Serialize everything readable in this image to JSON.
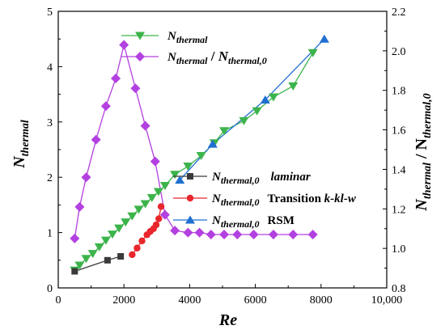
{
  "chart_data": {
    "type": "line",
    "xlabel": "Re",
    "ylabel_left": "N_thermal",
    "ylabel_right": "N_thermal / N_thermal,0",
    "xlim": [
      0,
      10000
    ],
    "ylim_left": [
      0,
      5
    ],
    "ylim_right": [
      0.8,
      2.2
    ],
    "x_ticks": [
      0,
      2000,
      4000,
      6000,
      8000,
      10000
    ],
    "x_tick_labels": [
      "0",
      "2000",
      "4000",
      "6000",
      "8000",
      "10,000"
    ],
    "y_left_ticks": [
      0,
      1,
      2,
      3,
      4,
      5
    ],
    "y_left_tick_labels": [
      "0",
      "1",
      "2",
      "3",
      "4",
      "5"
    ],
    "y_right_ticks": [
      0.8,
      1.0,
      1.2,
      1.4,
      1.6,
      1.8,
      2.0,
      2.2
    ],
    "y_right_tick_labels": [
      "0.8",
      "1.0",
      "1.2",
      "1.4",
      "1.6",
      "1.8",
      "2.0",
      "2.2"
    ],
    "grid": false,
    "legends": [
      {
        "placement": "top-left",
        "entries": [
          "N_thermal",
          "N_thermal / N_thermal,0"
        ]
      },
      {
        "placement": "center-right",
        "entries": [
          "N_thermal,0 laminar",
          "N_thermal,0 Transition k-kl-w",
          "N_thermal,0 RSM"
        ]
      }
    ],
    "series": [
      {
        "key": "nthermal",
        "name": "N_thermal",
        "axis": "left",
        "color": "#3cb44b",
        "marker": "triangle-down",
        "x": [
          500,
          650,
          850,
          1050,
          1250,
          1450,
          1650,
          1850,
          2050,
          2250,
          2450,
          2650,
          2850,
          3050,
          3250,
          3550,
          3950,
          4350,
          4750,
          5050,
          5650,
          6050,
          6550,
          7150,
          7750
        ],
        "y": [
          0.32,
          0.41,
          0.53,
          0.62,
          0.74,
          0.86,
          0.97,
          1.08,
          1.19,
          1.3,
          1.42,
          1.52,
          1.63,
          1.74,
          1.85,
          2.05,
          2.2,
          2.39,
          2.62,
          2.84,
          3.02,
          3.2,
          3.45,
          3.65,
          4.25
        ]
      },
      {
        "key": "ratio",
        "name": "N_thermal / N_thermal,0",
        "axis": "right",
        "color": "#b340e0",
        "marker": "diamond",
        "x": [
          500,
          650,
          850,
          1150,
          1450,
          1750,
          2000,
          2350,
          2650,
          2950,
          3250,
          3550,
          3950,
          4300,
          4650,
          5050,
          5450,
          5950,
          6550,
          7150,
          7750
        ],
        "y": [
          1.05,
          1.21,
          1.36,
          1.55,
          1.72,
          1.86,
          2.03,
          1.81,
          1.62,
          1.44,
          1.17,
          1.09,
          1.08,
          1.08,
          1.07,
          1.07,
          1.07,
          1.07,
          1.07,
          1.07,
          1.07
        ]
      },
      {
        "key": "laminar",
        "name": "N_thermal,0 laminar",
        "axis": "left",
        "color": "#3a3a3a",
        "marker": "square",
        "x": [
          500,
          1500,
          1900
        ],
        "y": [
          0.3,
          0.5,
          0.57
        ]
      },
      {
        "key": "transition",
        "name": "N_thermal,0 Transition k-kl-w",
        "axis": "left",
        "color": "#e8262b",
        "marker": "circle",
        "x": [
          2250,
          2400,
          2550,
          2700,
          2800,
          2900,
          2980,
          3060,
          3130
        ],
        "y": [
          0.6,
          0.72,
          0.85,
          0.96,
          1.02,
          1.07,
          1.14,
          1.25,
          1.47
        ]
      },
      {
        "key": "rsm",
        "name": "N_thermal,0 RSM",
        "axis": "left",
        "color": "#1f6fd1",
        "marker": "triangle-up",
        "x": [
          3700,
          4700,
          6300,
          8100
        ],
        "y": [
          1.95,
          2.6,
          3.4,
          4.5
        ]
      }
    ]
  }
}
